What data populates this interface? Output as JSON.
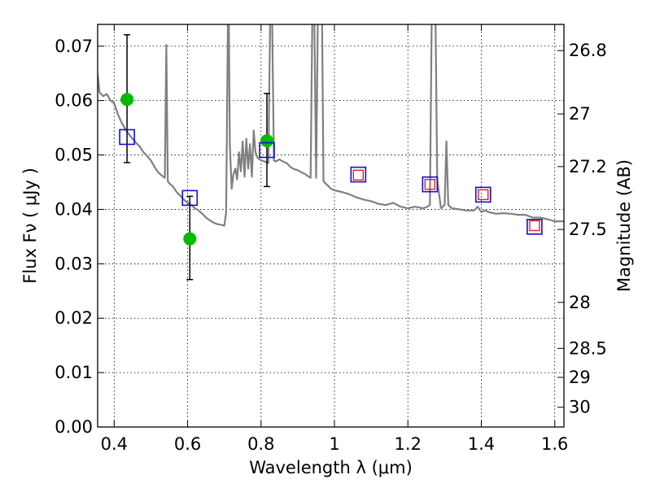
{
  "chart_data": {
    "type": "scatter",
    "title": "",
    "xlabel": "Wavelength  λ (μm)",
    "ylabel": "Flux  Fν ( μJy )",
    "y2label": "Magnitude (AB)",
    "xlim": [
      0.355,
      1.625
    ],
    "ylim": [
      0.0,
      0.074
    ],
    "grid": true,
    "legend": "none",
    "x_ticks": [
      0.4,
      0.6,
      0.8,
      1.0,
      1.2,
      1.4,
      1.6
    ],
    "x_tick_labels": [
      "0.4",
      "0.6",
      "0.8",
      "1",
      "1.2",
      "1.4",
      "1.6"
    ],
    "y_ticks": [
      0.0,
      0.01,
      0.02,
      0.03,
      0.04,
      0.05,
      0.06,
      0.07
    ],
    "y_tick_labels": [
      "0.00",
      "0.01",
      "0.02",
      "0.03",
      "0.04",
      "0.05",
      "0.06",
      "0.07"
    ],
    "y2_ticks": [
      {
        "mag": 26.8,
        "label": "26.8"
      },
      {
        "mag": 27.0,
        "label": "27"
      },
      {
        "mag": 27.2,
        "label": "27.2"
      },
      {
        "mag": 27.5,
        "label": "27.5"
      },
      {
        "mag": 28.0,
        "label": "28"
      },
      {
        "mag": 28.5,
        "label": "28.5"
      },
      {
        "mag": 29.0,
        "label": "29"
      },
      {
        "mag": 30.0,
        "label": "30"
      }
    ],
    "series": [
      {
        "kind": "line",
        "color": "#808080",
        "x": [
          0.355,
          0.36,
          0.37,
          0.38,
          0.39,
          0.4,
          0.41,
          0.42,
          0.43,
          0.44,
          0.45,
          0.46,
          0.47,
          0.48,
          0.49,
          0.5,
          0.51,
          0.52,
          0.53,
          0.538,
          0.542,
          0.546,
          0.55,
          0.56,
          0.57,
          0.58,
          0.59,
          0.6,
          0.61,
          0.62,
          0.63,
          0.64,
          0.65,
          0.66,
          0.67,
          0.68,
          0.69,
          0.7,
          0.705,
          0.71,
          0.712,
          0.715,
          0.72,
          0.725,
          0.73,
          0.735,
          0.74,
          0.745,
          0.75,
          0.755,
          0.76,
          0.765,
          0.77,
          0.775,
          0.78,
          0.785,
          0.79,
          0.8,
          0.81,
          0.82,
          0.825,
          0.83,
          0.835,
          0.84,
          0.85,
          0.86,
          0.87,
          0.88,
          0.89,
          0.9,
          0.91,
          0.92,
          0.93,
          0.935,
          0.94,
          0.945,
          0.95,
          0.955,
          0.96,
          0.963,
          0.966,
          0.97,
          0.975,
          0.98,
          0.99,
          1.0,
          1.02,
          1.04,
          1.06,
          1.08,
          1.1,
          1.12,
          1.14,
          1.16,
          1.18,
          1.2,
          1.22,
          1.24,
          1.25,
          1.26,
          1.265,
          1.27,
          1.275,
          1.28,
          1.29,
          1.3,
          1.305,
          1.31,
          1.32,
          1.34,
          1.36,
          1.38,
          1.39,
          1.4,
          1.41,
          1.42,
          1.44,
          1.46,
          1.48,
          1.5,
          1.52,
          1.54,
          1.56,
          1.58,
          1.6,
          1.625
        ],
        "y": [
          0.0648,
          0.0615,
          0.0608,
          0.0612,
          0.06,
          0.0595,
          0.0575,
          0.056,
          0.0548,
          0.0538,
          0.053,
          0.0522,
          0.0515,
          0.0505,
          0.0498,
          0.049,
          0.0478,
          0.0468,
          0.0462,
          0.0458,
          0.0702,
          0.0452,
          0.0448,
          0.0442,
          0.0432,
          0.0425,
          0.0418,
          0.0412,
          0.0408,
          0.0402,
          0.0398,
          0.0392,
          0.0385,
          0.038,
          0.0376,
          0.0373,
          0.0372,
          0.037,
          0.0395,
          0.0765,
          0.0765,
          0.052,
          0.0438,
          0.0465,
          0.0475,
          0.0455,
          0.0505,
          0.047,
          0.0525,
          0.046,
          0.053,
          0.0475,
          0.052,
          0.046,
          0.0545,
          0.0505,
          0.0495,
          0.049,
          0.0488,
          0.0485,
          0.0765,
          0.0765,
          0.049,
          0.0488,
          0.0492,
          0.0488,
          0.0485,
          0.0478,
          0.0474,
          0.0472,
          0.0468,
          0.0465,
          0.046,
          0.0458,
          0.0765,
          0.0765,
          0.0458,
          0.0765,
          0.0765,
          0.0765,
          0.0765,
          0.0452,
          0.0448,
          0.0445,
          0.0438,
          0.0435,
          0.0432,
          0.0428,
          0.0422,
          0.0418,
          0.0415,
          0.041,
          0.0408,
          0.0412,
          0.0405,
          0.0402,
          0.0405,
          0.0402,
          0.0404,
          0.0408,
          0.0765,
          0.0765,
          0.0765,
          0.0455,
          0.0402,
          0.0408,
          0.0525,
          0.0408,
          0.0402,
          0.04,
          0.0398,
          0.0398,
          0.0405,
          0.0395,
          0.0398,
          0.0395,
          0.0392,
          0.0393,
          0.0392,
          0.039,
          0.039,
          0.0385,
          0.0385,
          0.0382,
          0.0378,
          0.0378
        ]
      },
      {
        "kind": "points",
        "marker": "circle",
        "color": "#00bb00",
        "x": [
          0.435,
          0.606,
          0.816
        ],
        "y": [
          0.0602,
          0.0346,
          0.0526
        ],
        "yerr_low": [
          0.0486,
          0.0271,
          0.0442
        ],
        "yerr_high": [
          0.0721,
          0.0424,
          0.0613
        ]
      },
      {
        "kind": "points",
        "marker": "square-open",
        "color": "#1010cc",
        "x": [
          0.435,
          0.606,
          0.816,
          1.065,
          1.26,
          1.405,
          1.545
        ],
        "y": [
          0.0533,
          0.0421,
          0.0509,
          0.0464,
          0.0446,
          0.0427,
          0.0368
        ]
      },
      {
        "kind": "points",
        "marker": "square-open-small",
        "color": "#dd2222",
        "x": [
          1.065,
          1.26,
          1.405,
          1.545
        ],
        "y": [
          0.0463,
          0.0446,
          0.0427,
          0.037
        ]
      }
    ]
  }
}
